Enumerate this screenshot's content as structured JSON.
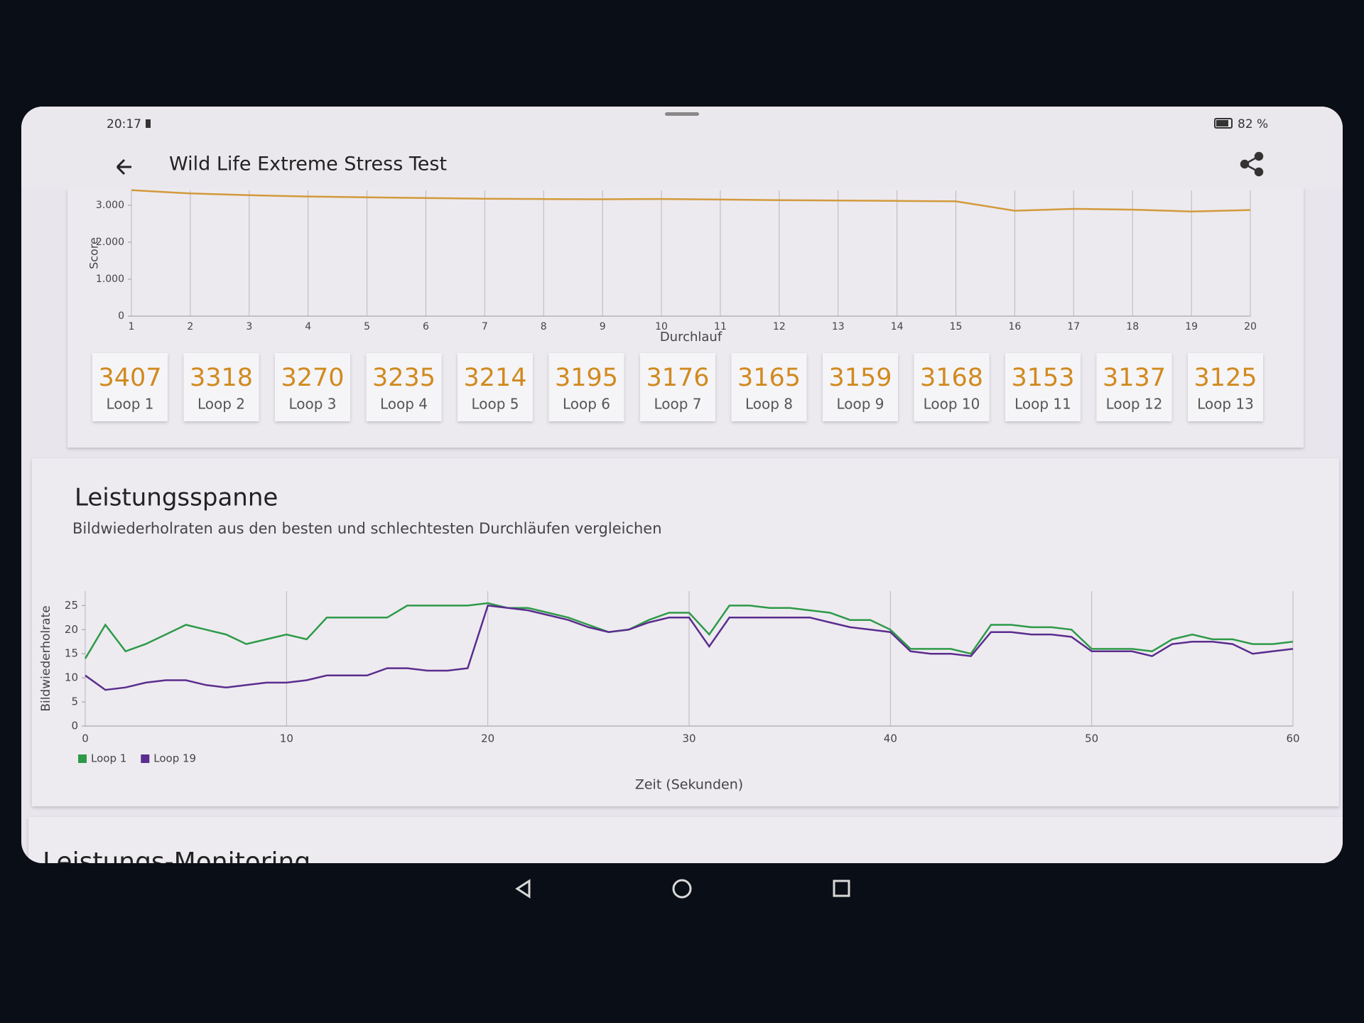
{
  "status_bar": {
    "time": "20:17",
    "battery": "82 %"
  },
  "app_bar": {
    "title": "Wild Life Extreme Stress Test"
  },
  "loops": [
    {
      "score": 3407,
      "label": "Loop 1"
    },
    {
      "score": 3318,
      "label": "Loop 2"
    },
    {
      "score": 3270,
      "label": "Loop 3"
    },
    {
      "score": 3235,
      "label": "Loop 4"
    },
    {
      "score": 3214,
      "label": "Loop 5"
    },
    {
      "score": 3195,
      "label": "Loop 6"
    },
    {
      "score": 3176,
      "label": "Loop 7"
    },
    {
      "score": 3165,
      "label": "Loop 8"
    },
    {
      "score": 3159,
      "label": "Loop 9"
    },
    {
      "score": 3168,
      "label": "Loop 10"
    },
    {
      "score": 3153,
      "label": "Loop 11"
    },
    {
      "score": 3137,
      "label": "Loop 12"
    },
    {
      "score": 3125,
      "label": "Loop 13"
    }
  ],
  "section": {
    "title": "Leistungsspanne",
    "subtitle": "Bildwiederholraten aus den besten und schlechtesten Durchläufen vergleichen"
  },
  "next_section": {
    "title": "Leistungs-Monitoring"
  },
  "chart_data": [
    {
      "type": "line",
      "x_label": "Durchlauf",
      "y_label": "Score",
      "color": "#d39a3c",
      "grid": "x",
      "x": [
        1,
        2,
        3,
        4,
        5,
        6,
        7,
        8,
        9,
        10,
        11,
        12,
        13,
        14,
        15,
        16,
        17,
        18,
        19,
        20
      ],
      "values": [
        3407,
        3318,
        3270,
        3235,
        3214,
        3195,
        3176,
        3165,
        3159,
        3168,
        3153,
        3137,
        3125,
        3115,
        3105,
        2850,
        2900,
        2880,
        2830,
        2870
      ],
      "xlim": [
        1,
        20
      ],
      "xticks": [
        1,
        2,
        3,
        4,
        5,
        6,
        7,
        8,
        9,
        10,
        11,
        12,
        13,
        14,
        15,
        16,
        17,
        18,
        19,
        20
      ],
      "ylim": [
        0,
        3400
      ],
      "yticks": [
        0,
        {
          "value": 1000,
          "label": "1.000"
        },
        {
          "value": 2000,
          "label": "2.000"
        },
        {
          "value": 3000,
          "label": "3.000"
        }
      ]
    },
    {
      "type": "line",
      "x_label": "Zeit (Sekunden)",
      "y_label": "Bildwiederholrate",
      "grid": "x",
      "legend": "bottom-left",
      "x": [
        0,
        1,
        2,
        3,
        4,
        5,
        6,
        7,
        8,
        9,
        10,
        11,
        12,
        13,
        14,
        15,
        16,
        17,
        18,
        19,
        20,
        21,
        22,
        23,
        24,
        25,
        26,
        27,
        28,
        29,
        30,
        31,
        32,
        33,
        34,
        35,
        36,
        37,
        38,
        39,
        40,
        41,
        42,
        43,
        44,
        45,
        46,
        47,
        48,
        49,
        50,
        51,
        52,
        53,
        54,
        55,
        56,
        57,
        58,
        59,
        60
      ],
      "series": [
        {
          "name": "Loop 1",
          "color": "#2e9a48",
          "values": [
            14,
            21,
            15.5,
            17,
            19,
            21,
            20,
            19,
            17,
            18,
            19,
            18,
            22.5,
            22.5,
            22.5,
            22.5,
            25,
            25,
            25,
            25,
            25.5,
            24.5,
            24.5,
            23.5,
            22.5,
            21,
            19.5,
            20,
            22,
            23.5,
            23.5,
            19,
            25,
            25,
            24.5,
            24.5,
            24,
            23.5,
            22,
            22,
            20,
            16,
            16,
            16,
            15,
            21,
            21,
            20.5,
            20.5,
            20,
            16,
            16,
            16,
            15.5,
            18,
            19,
            18,
            18,
            17,
            17,
            17.5
          ]
        },
        {
          "name": "Loop 19",
          "color": "#5b2d8e",
          "values": [
            10.5,
            7.5,
            8,
            9,
            9.5,
            9.5,
            8.5,
            8,
            8.5,
            9,
            9,
            9.5,
            10.5,
            10.5,
            10.5,
            12,
            12,
            11.5,
            11.5,
            12,
            25,
            24.5,
            24,
            23,
            22,
            20.5,
            19.5,
            20,
            21.5,
            22.5,
            22.5,
            16.5,
            22.5,
            22.5,
            22.5,
            22.5,
            22.5,
            21.5,
            20.5,
            20,
            19.5,
            15.5,
            15,
            15,
            14.5,
            19.5,
            19.5,
            19,
            19,
            18.5,
            15.5,
            15.5,
            15.5,
            14.5,
            17,
            17.5,
            17.5,
            17,
            15,
            15.5,
            16
          ]
        }
      ],
      "xlim": [
        0,
        60
      ],
      "xticks": [
        0,
        10,
        20,
        30,
        40,
        50,
        60
      ],
      "ylim": [
        0,
        28
      ],
      "yticks": [
        0,
        5,
        10,
        15,
        20,
        25
      ]
    }
  ]
}
